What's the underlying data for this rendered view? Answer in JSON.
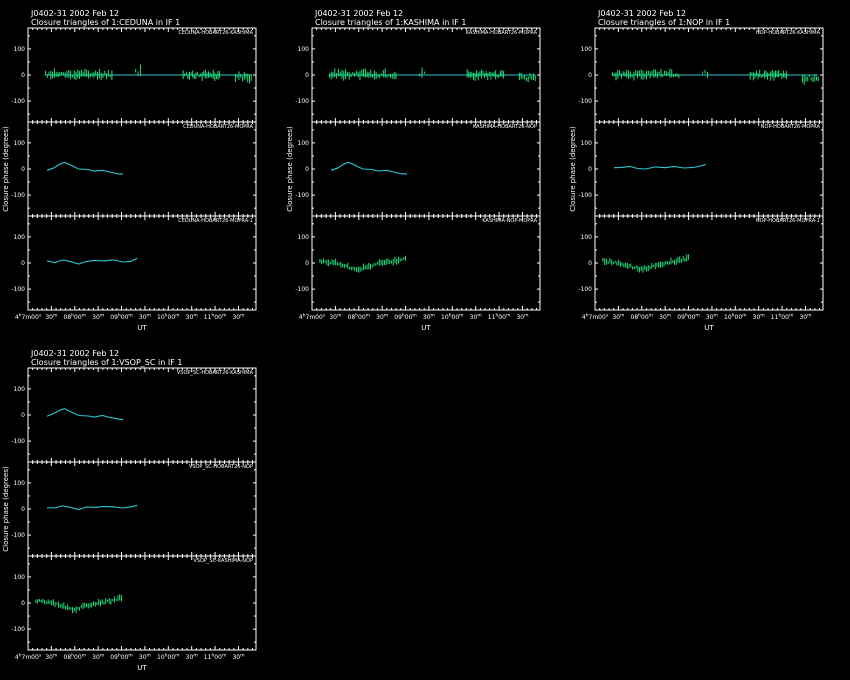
{
  "colors": {
    "background": "#000000",
    "foreground": "#ffffff",
    "points": "#22e07a",
    "model": "#28c8d0"
  },
  "figure": {
    "source": "J0402-31",
    "date": "2002 Feb 12"
  },
  "chart_data": [
    {
      "type": "line",
      "title": "J0402-31   2002 Feb 12",
      "subtitle": "Closure triangles of 1:CEDUNA in IF 1",
      "xlabel": "UT",
      "ylabel": "Closure phase  (degrees)",
      "xlim": [
        0,
        7.2
      ],
      "x_tick_labels": [
        "4^h7m00^s",
        "30^m",
        "08^h00^m",
        "30^m",
        "09^h00^m",
        "30^m",
        "10^h00^m",
        "30^m",
        "11^h00^m",
        "30^m"
      ],
      "ylim": [
        -180,
        180
      ],
      "y_ticks": [
        -100,
        0,
        100
      ],
      "panels": [
        {
          "triangle": "CEDUNA-HOBART26-KASHIMA",
          "kind": "points",
          "zero_line": true,
          "segments": [
            {
              "x_start": 0.55,
              "x_end": 2.65,
              "n": 38,
              "offset": 2,
              "scatter": 15,
              "seed": 11
            },
            {
              "x_start": 3.4,
              "x_end": 3.55,
              "n": 3,
              "offset": 10,
              "scatter": 25,
              "seed": 12
            },
            {
              "x_start": 4.9,
              "x_end": 6.05,
              "n": 24,
              "offset": 0,
              "scatter": 14,
              "seed": 13
            },
            {
              "x_start": 6.55,
              "x_end": 7.05,
              "n": 10,
              "offset": -10,
              "scatter": 16,
              "seed": 14
            }
          ]
        },
        {
          "triangle": "CEDUNA-HOBART26-MOPRA",
          "kind": "smooth",
          "x": [
            0.6,
            0.8,
            1.0,
            1.15,
            1.35,
            1.6,
            1.9,
            2.1,
            2.35,
            2.6,
            2.8,
            3.0
          ],
          "y": [
            -5,
            3,
            18,
            26,
            15,
            0,
            -2,
            -8,
            -5,
            -12,
            -18,
            -20
          ]
        },
        {
          "triangle": "CEDUNA-HOBART26-MOPRA-1",
          "kind": "smooth",
          "x": [
            0.6,
            0.85,
            1.1,
            1.35,
            1.6,
            1.85,
            2.1,
            2.4,
            2.7,
            3.0,
            3.25,
            3.45
          ],
          "y": [
            8,
            2,
            12,
            5,
            -4,
            6,
            10,
            8,
            12,
            4,
            6,
            18
          ]
        }
      ]
    },
    {
      "type": "line",
      "title": "J0402-31   2002 Feb 12",
      "subtitle": "Closure triangles of 1:KASHIMA in IF 1",
      "xlabel": "UT",
      "ylabel": "Closure phase  (degrees)",
      "xlim": [
        0,
        7.2
      ],
      "x_tick_labels": [
        "4^h7m00^s",
        "30^m",
        "08^h00^m",
        "30^m",
        "09^h00^m",
        "30^m",
        "10^h00^m",
        "30^m",
        "11^h00^m",
        "30^m"
      ],
      "ylim": [
        -180,
        180
      ],
      "y_ticks": [
        -100,
        0,
        100
      ],
      "panels": [
        {
          "triangle": "KASHIMA-HOBART26-MOPRA",
          "kind": "points",
          "zero_line": true,
          "segments": [
            {
              "x_start": 0.55,
              "x_end": 2.65,
              "n": 38,
              "offset": 2,
              "scatter": 15,
              "seed": 21
            },
            {
              "x_start": 3.4,
              "x_end": 3.55,
              "n": 3,
              "offset": 10,
              "scatter": 25,
              "seed": 22
            },
            {
              "x_start": 4.9,
              "x_end": 6.05,
              "n": 24,
              "offset": 0,
              "scatter": 14,
              "seed": 23
            },
            {
              "x_start": 6.55,
              "x_end": 7.05,
              "n": 10,
              "offset": -10,
              "scatter": 16,
              "seed": 24
            }
          ]
        },
        {
          "triangle": "KASHIMA-HOBART26-NOP",
          "kind": "smooth",
          "x": [
            0.6,
            0.8,
            1.0,
            1.15,
            1.35,
            1.6,
            1.9,
            2.1,
            2.35,
            2.6,
            2.8,
            3.0
          ],
          "y": [
            -5,
            3,
            18,
            26,
            15,
            0,
            -2,
            -8,
            -5,
            -12,
            -18,
            -20
          ]
        },
        {
          "triangle": "KASHIMA-NOP-MOPRA",
          "kind": "points",
          "segments": [
            {
              "x_start": 0.25,
              "x_end": 2.95,
              "n": 50,
              "trend": [
                8,
                5,
                0,
                -8,
                -18,
                -25,
                -15,
                -5,
                0,
                5,
                10,
                20
              ],
              "scatter": 9,
              "seed": 25
            }
          ]
        }
      ]
    },
    {
      "type": "line",
      "title": "J0402-31   2002 Feb 12",
      "subtitle": "Closure triangles of 1:NOP in IF 1",
      "xlabel": "UT",
      "ylabel": "Closure phase  (degrees)",
      "xlim": [
        0,
        7.2
      ],
      "x_tick_labels": [
        "4^h7m00^s",
        "30^m",
        "08^h00^m",
        "30^m",
        "09^h00^m",
        "30^m",
        "10^h00^m",
        "30^m",
        "11^h00^m",
        "30^m"
      ],
      "ylim": [
        -180,
        180
      ],
      "y_ticks": [
        -100,
        0,
        100
      ],
      "panels": [
        {
          "triangle": "NOP-HOBART26-KASHIMA",
          "kind": "points",
          "zero_line": true,
          "segments": [
            {
              "x_start": 0.55,
              "x_end": 2.65,
              "n": 38,
              "offset": 2,
              "scatter": 15,
              "seed": 31
            },
            {
              "x_start": 3.4,
              "x_end": 3.55,
              "n": 3,
              "offset": 10,
              "scatter": 25,
              "seed": 32
            },
            {
              "x_start": 4.9,
              "x_end": 6.05,
              "n": 24,
              "offset": 0,
              "scatter": 14,
              "seed": 33
            },
            {
              "x_start": 6.55,
              "x_end": 7.05,
              "n": 10,
              "offset": -10,
              "scatter": 16,
              "seed": 34
            }
          ]
        },
        {
          "triangle": "NOP-HOBART26-MOPRA",
          "kind": "smooth",
          "x": [
            0.6,
            0.85,
            1.1,
            1.35,
            1.6,
            1.9,
            2.2,
            2.5,
            2.8,
            3.1,
            3.3,
            3.5
          ],
          "y": [
            5,
            6,
            10,
            2,
            0,
            8,
            5,
            10,
            4,
            6,
            10,
            18
          ]
        },
        {
          "triangle": "NOP-HOBART26-MOPRA-1",
          "kind": "points",
          "segments": [
            {
              "x_start": 0.25,
              "x_end": 2.95,
              "n": 50,
              "trend": [
                8,
                5,
                0,
                -8,
                -18,
                -25,
                -15,
                -5,
                0,
                5,
                10,
                20
              ],
              "scatter": 9,
              "seed": 35
            }
          ]
        }
      ]
    },
    {
      "type": "line",
      "title": "J0402-31   2002 Feb 12",
      "subtitle": "Closure triangles of 1:VSOP_SC in IF 1",
      "xlabel": "UT",
      "ylabel": "Closure phase  (degrees)",
      "xlim": [
        0,
        7.2
      ],
      "x_tick_labels": [
        "4^h7m00^s",
        "30^m",
        "08^h00^m",
        "30^m",
        "09^h00^m",
        "30^m",
        "10^h00^m",
        "30^m",
        "11^h00^m",
        "30^m"
      ],
      "ylim": [
        -180,
        180
      ],
      "y_ticks": [
        -100,
        0,
        100
      ],
      "panels": [
        {
          "triangle": "VSOP_SC-HOBART26-KASHIMA",
          "kind": "smooth",
          "x": [
            0.6,
            0.8,
            1.0,
            1.15,
            1.35,
            1.6,
            1.9,
            2.1,
            2.35,
            2.6,
            2.8,
            3.0
          ],
          "y": [
            -5,
            5,
            18,
            24,
            12,
            -2,
            -4,
            -8,
            -2,
            -10,
            -14,
            -18
          ]
        },
        {
          "triangle": "VSOP_SC-HOBART26-NOP",
          "kind": "smooth",
          "x": [
            0.6,
            0.85,
            1.1,
            1.35,
            1.6,
            1.85,
            2.1,
            2.4,
            2.7,
            3.0,
            3.25,
            3.45
          ],
          "y": [
            5,
            4,
            12,
            6,
            -2,
            8,
            6,
            10,
            8,
            4,
            8,
            14
          ]
        },
        {
          "triangle": "VSOP_SC-KASHIMA-NOP",
          "kind": "points",
          "segments": [
            {
              "x_start": 0.25,
              "x_end": 2.95,
              "n": 50,
              "trend": [
                8,
                5,
                0,
                -8,
                -18,
                -25,
                -15,
                -5,
                0,
                5,
                10,
                20
              ],
              "scatter": 9,
              "seed": 45
            }
          ]
        }
      ]
    }
  ]
}
